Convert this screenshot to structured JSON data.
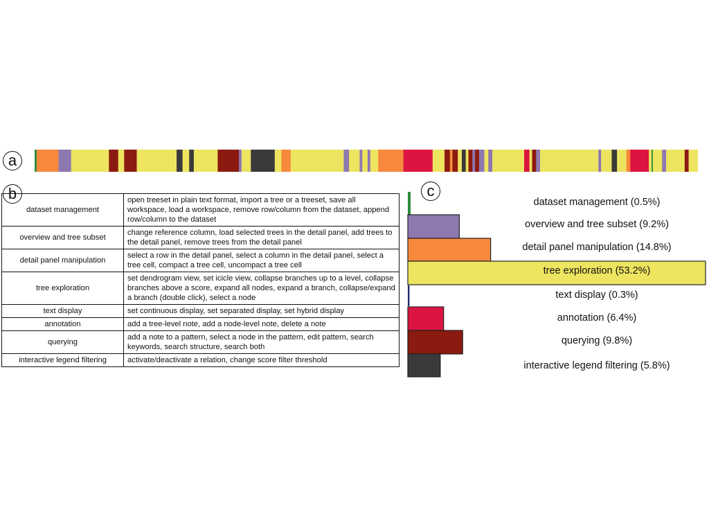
{
  "labels": {
    "a": "a",
    "b": "b",
    "c": "c"
  },
  "categories": [
    {
      "key": "dataset",
      "name": "dataset management",
      "color": "#2e8b3e"
    },
    {
      "key": "overview",
      "name": "overview and tree subset",
      "color": "#8e78b0"
    },
    {
      "key": "detail",
      "name": "detail panel manipulation",
      "color": "#f6893c"
    },
    {
      "key": "tree",
      "name": "tree exploration",
      "color": "#ede460"
    },
    {
      "key": "text",
      "name": "text display",
      "color": "#1e2d6b"
    },
    {
      "key": "annotation",
      "name": "annotation",
      "color": "#dc1441"
    },
    {
      "key": "querying",
      "name": "querying",
      "color": "#8b1a10"
    },
    {
      "key": "legend",
      "name": "interactive legend filtering",
      "color": "#3a3a3a"
    }
  ],
  "table": {
    "rows": [
      {
        "category": "dataset management",
        "actions": "open treeset in plain text format, import a tree or a treeset, save all workspace, load a workspace, remove row/column from the dataset, append row/column to the dataset"
      },
      {
        "category": "overview and tree subset",
        "actions": "change reference column, load selected trees in the detail panel, add trees to the detail panel, remove trees from the detail panel"
      },
      {
        "category": "detail panel manipulation",
        "actions": "select a row in the detail panel, select a column in the detail panel, select a tree cell, compact a tree cell, uncompact a tree cell"
      },
      {
        "category": "tree exploration",
        "actions": "set dendrogram view, set icicle view, collapse branches up to a level, collapse branches above a score, expand all nodes, expand a branch, collapse/expand a branch (double click), select a node"
      },
      {
        "category": "text display",
        "actions": "set continuous display, set separated display, set hybrid display"
      },
      {
        "category": "annotation",
        "actions": "add a tree-level note, add a node-level note, delete a note"
      },
      {
        "category": "querying",
        "actions": "add a note to a pattern, select a node in the pattern, edit pattern, search keywords, search structure, search both"
      },
      {
        "category": "interactive legend filtering",
        "actions": "activate/deactivate a relation, change score filter threshold"
      }
    ]
  },
  "chart_data": [
    {
      "type": "bar",
      "subtype": "event-sequence",
      "start": 0,
      "end": 1000,
      "segments": [
        {
          "start": 0,
          "end": 3,
          "category": "dataset"
        },
        {
          "start": 3,
          "end": 36,
          "category": "detail"
        },
        {
          "start": 36,
          "end": 55,
          "category": "overview"
        },
        {
          "start": 55,
          "end": 112,
          "category": "tree"
        },
        {
          "start": 112,
          "end": 126,
          "category": "querying"
        },
        {
          "start": 126,
          "end": 135,
          "category": "tree"
        },
        {
          "start": 135,
          "end": 154,
          "category": "querying"
        },
        {
          "start": 154,
          "end": 214,
          "category": "tree"
        },
        {
          "start": 214,
          "end": 223,
          "category": "legend"
        },
        {
          "start": 223,
          "end": 233,
          "category": "tree"
        },
        {
          "start": 233,
          "end": 240,
          "category": "legend"
        },
        {
          "start": 240,
          "end": 276,
          "category": "tree"
        },
        {
          "start": 276,
          "end": 308,
          "category": "querying"
        },
        {
          "start": 308,
          "end": 312,
          "category": "overview"
        },
        {
          "start": 312,
          "end": 326,
          "category": "tree"
        },
        {
          "start": 326,
          "end": 362,
          "category": "legend"
        },
        {
          "start": 362,
          "end": 372,
          "category": "tree"
        },
        {
          "start": 372,
          "end": 386,
          "category": "detail"
        },
        {
          "start": 386,
          "end": 466,
          "category": "tree"
        },
        {
          "start": 466,
          "end": 474,
          "category": "overview"
        },
        {
          "start": 474,
          "end": 490,
          "category": "tree"
        },
        {
          "start": 490,
          "end": 494,
          "category": "overview"
        },
        {
          "start": 494,
          "end": 502,
          "category": "tree"
        },
        {
          "start": 502,
          "end": 506,
          "category": "overview"
        },
        {
          "start": 506,
          "end": 518,
          "category": "tree"
        },
        {
          "start": 518,
          "end": 556,
          "category": "detail"
        },
        {
          "start": 556,
          "end": 600,
          "category": "annotation"
        },
        {
          "start": 600,
          "end": 618,
          "category": "tree"
        },
        {
          "start": 618,
          "end": 626,
          "category": "querying"
        },
        {
          "start": 626,
          "end": 630,
          "category": "detail"
        },
        {
          "start": 630,
          "end": 638,
          "category": "querying"
        },
        {
          "start": 638,
          "end": 644,
          "category": "tree"
        },
        {
          "start": 644,
          "end": 650,
          "category": "legend"
        },
        {
          "start": 650,
          "end": 654,
          "category": "tree"
        },
        {
          "start": 654,
          "end": 660,
          "category": "querying"
        },
        {
          "start": 660,
          "end": 664,
          "category": "overview"
        },
        {
          "start": 664,
          "end": 670,
          "category": "querying"
        },
        {
          "start": 670,
          "end": 678,
          "category": "overview"
        },
        {
          "start": 678,
          "end": 684,
          "category": "tree"
        },
        {
          "start": 684,
          "end": 690,
          "category": "overview"
        },
        {
          "start": 690,
          "end": 738,
          "category": "tree"
        },
        {
          "start": 738,
          "end": 746,
          "category": "annotation"
        },
        {
          "start": 746,
          "end": 750,
          "category": "tree"
        },
        {
          "start": 750,
          "end": 756,
          "category": "querying"
        },
        {
          "start": 756,
          "end": 762,
          "category": "overview"
        },
        {
          "start": 762,
          "end": 850,
          "category": "tree"
        },
        {
          "start": 850,
          "end": 854,
          "category": "overview"
        },
        {
          "start": 854,
          "end": 870,
          "category": "tree"
        },
        {
          "start": 870,
          "end": 878,
          "category": "legend"
        },
        {
          "start": 878,
          "end": 892,
          "category": "tree"
        },
        {
          "start": 892,
          "end": 898,
          "category": "detail"
        },
        {
          "start": 898,
          "end": 926,
          "category": "annotation"
        },
        {
          "start": 926,
          "end": 930,
          "category": "tree"
        },
        {
          "start": 930,
          "end": 932,
          "category": "dataset"
        },
        {
          "start": 932,
          "end": 946,
          "category": "tree"
        },
        {
          "start": 946,
          "end": 952,
          "category": "overview"
        },
        {
          "start": 952,
          "end": 980,
          "category": "tree"
        },
        {
          "start": 980,
          "end": 986,
          "category": "querying"
        },
        {
          "start": 986,
          "end": 1000,
          "category": "tree"
        }
      ]
    },
    {
      "type": "bar",
      "orientation": "horizontal",
      "categories": [
        "dataset management (0.5%)",
        "overview and tree subset (9.2%)",
        "detail panel manipulation (14.8%)",
        "tree exploration (53.2%)",
        "text display (0.3%)",
        "annotation (6.4%)",
        "querying (9.8%)",
        "interactive legend filtering (5.8%)"
      ],
      "values": [
        0.5,
        9.2,
        14.8,
        53.2,
        0.3,
        6.4,
        9.8,
        5.8
      ],
      "keys": [
        "dataset",
        "overview",
        "detail",
        "tree",
        "text",
        "annotation",
        "querying",
        "legend"
      ],
      "xlim": [
        0,
        53.2
      ]
    }
  ]
}
